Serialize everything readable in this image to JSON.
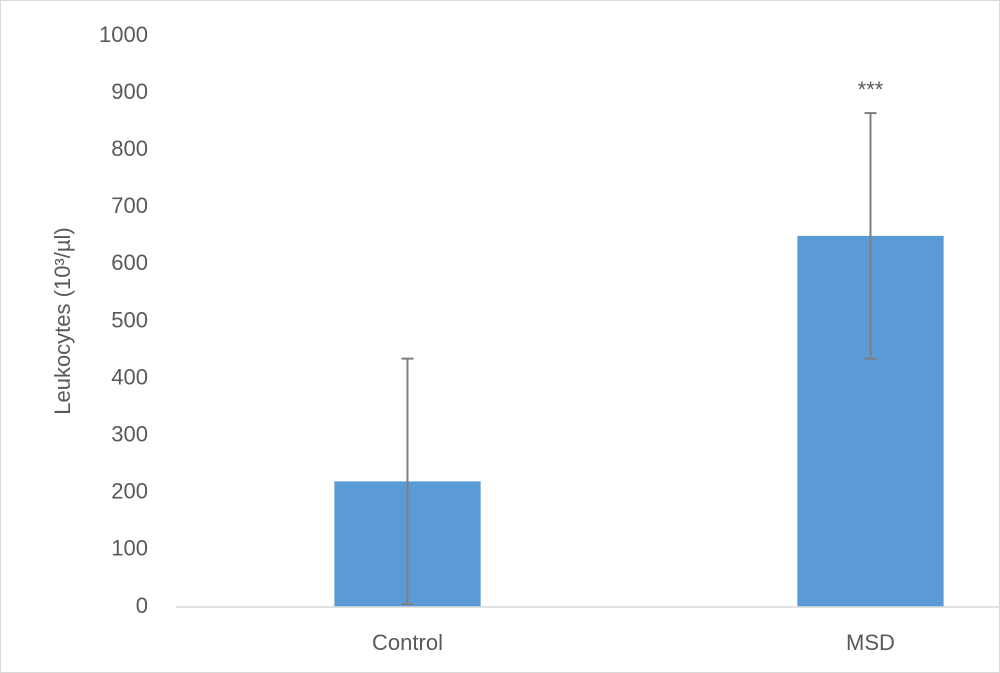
{
  "chart_data": {
    "type": "bar",
    "y_label": "Leukocytes (10³/µl)",
    "categories": [
      "Control",
      "MSD"
    ],
    "values": [
      220,
      650
    ],
    "errors": [
      215,
      215
    ],
    "annotation": "***",
    "color": "#5b9bd5",
    "ylim": [
      0,
      1000
    ],
    "yticks": [
      0,
      100,
      200,
      300,
      400,
      500,
      600,
      700,
      800,
      900,
      1000
    ],
    "grid": false
  }
}
